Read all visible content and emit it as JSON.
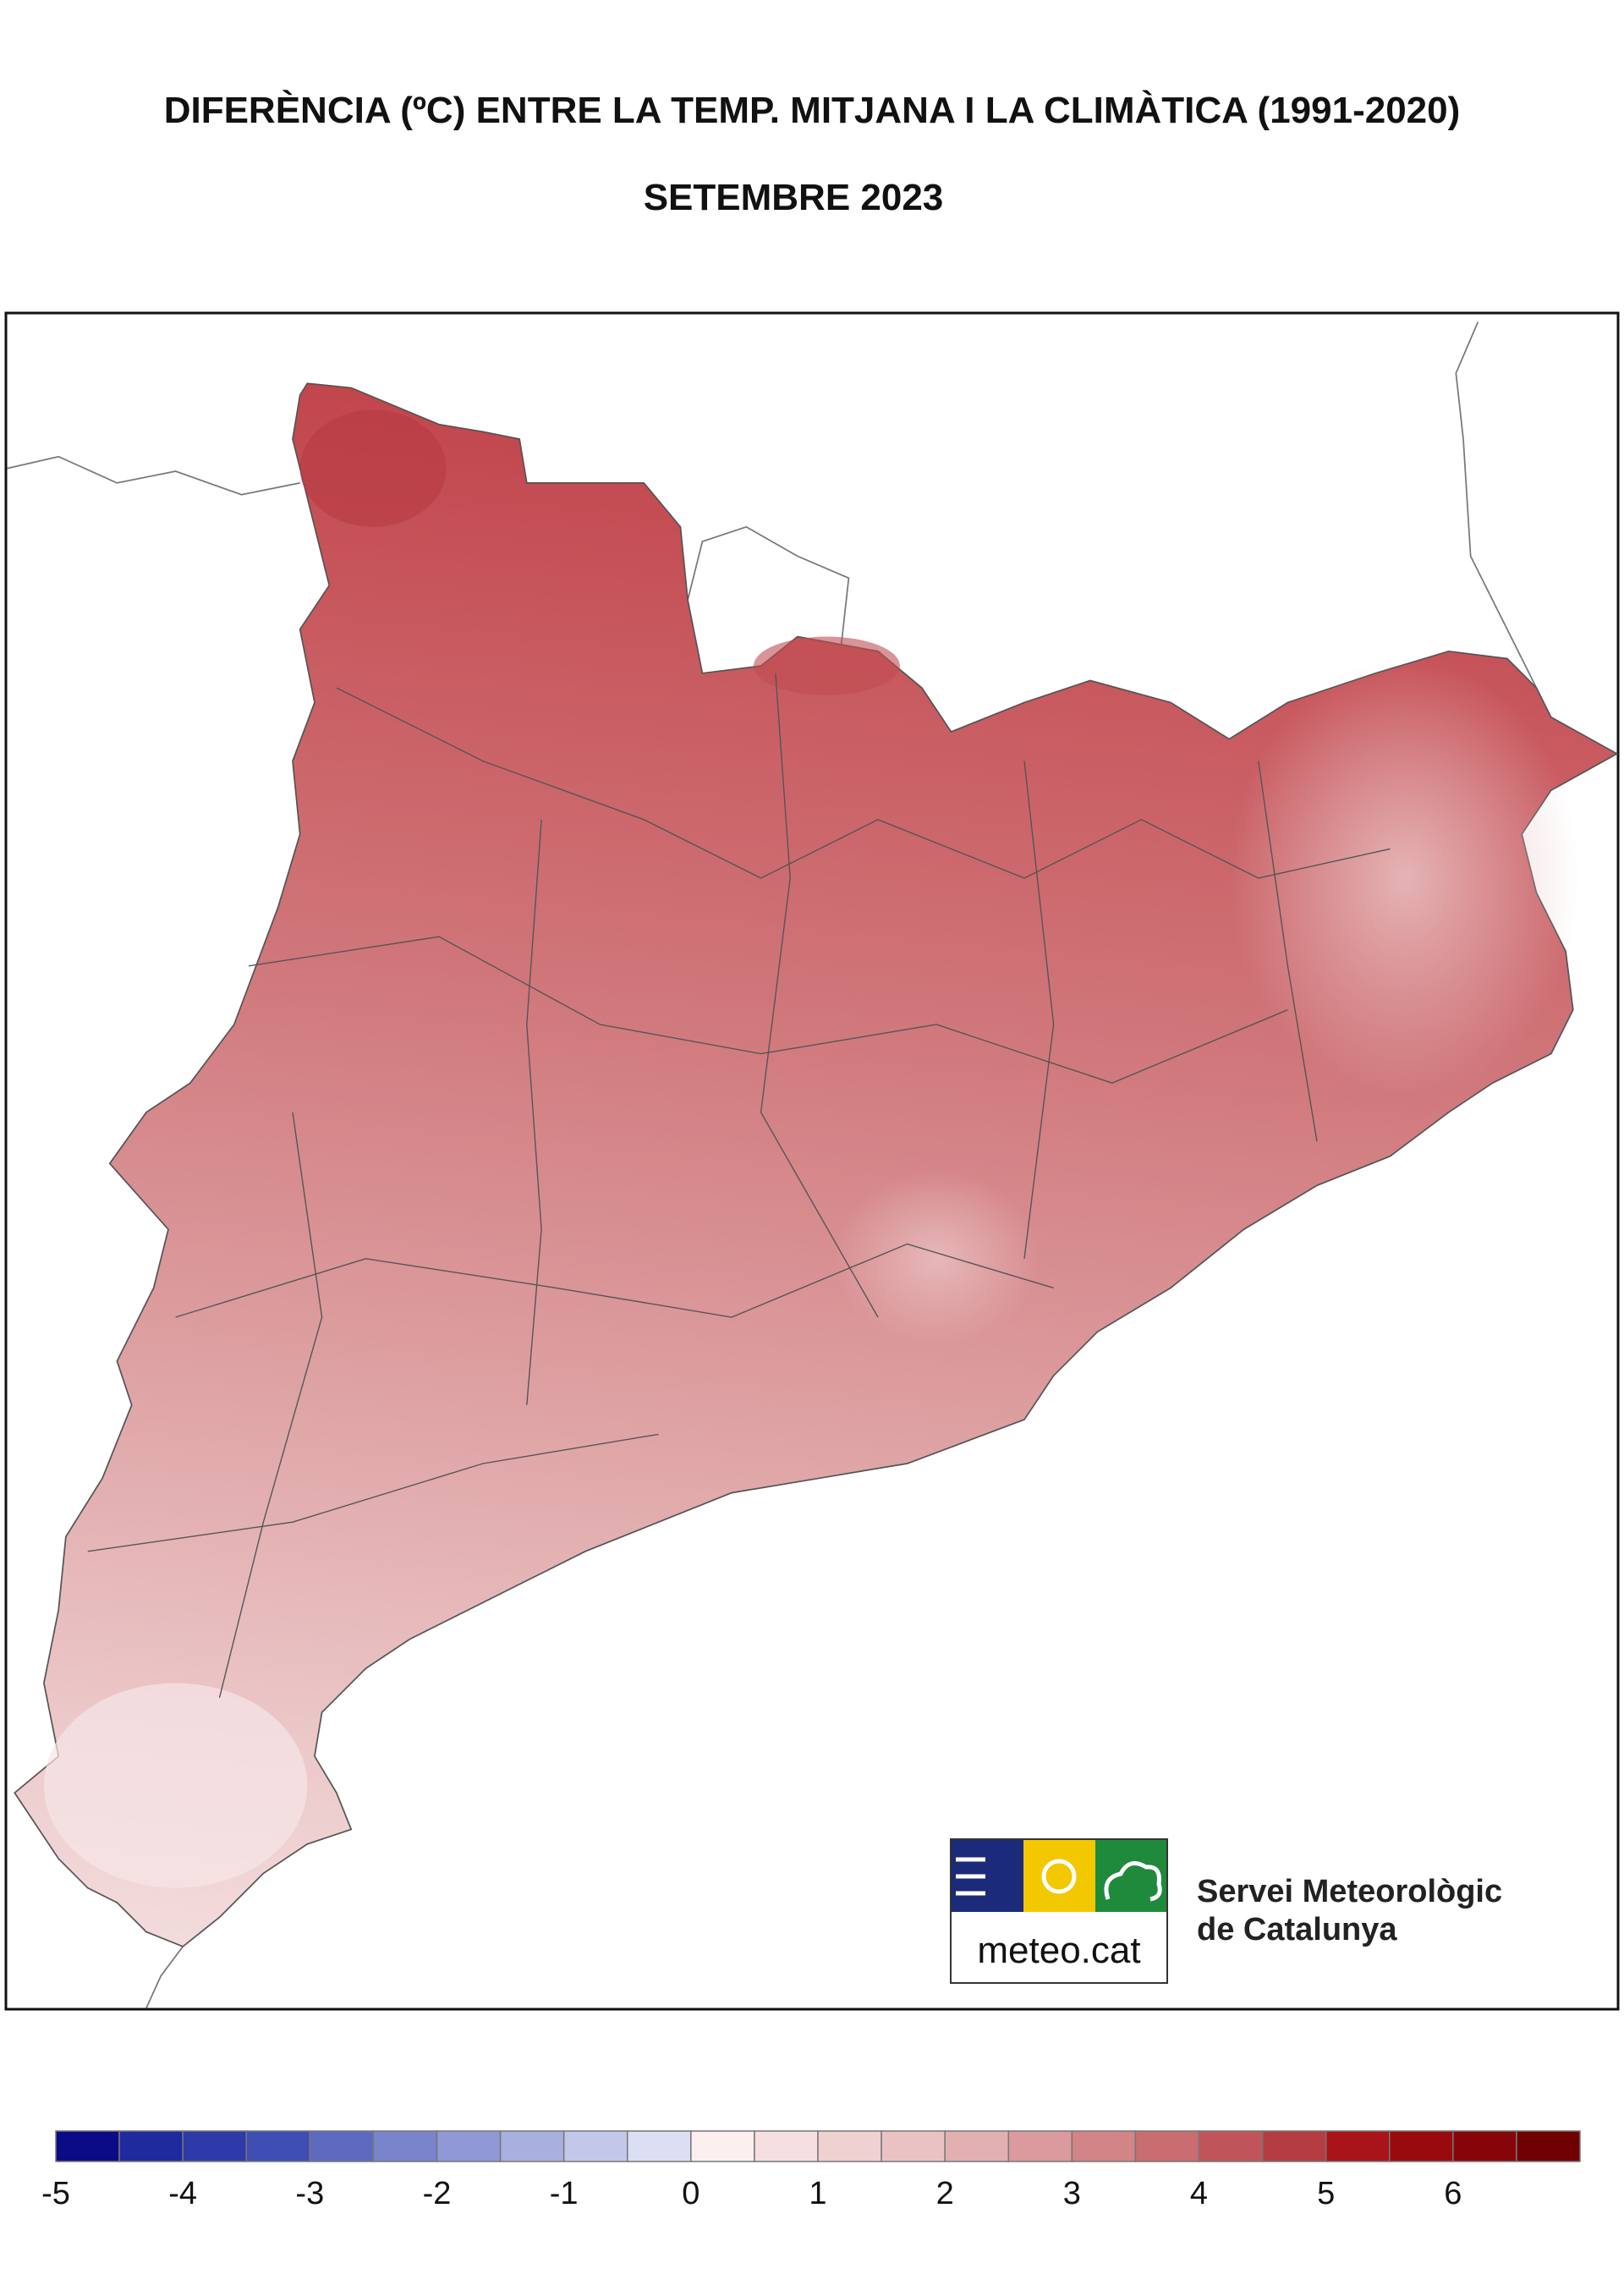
{
  "title": "DIFERÈNCIA (ºC) ENTRE LA TEMP. MITJANA I LA CLIMÀTICA (1991-2020)",
  "subtitle": "SETEMBRE 2023",
  "logo": {
    "site": "meteo.cat",
    "name_line1": "Servei Meteorològic",
    "name_line2": "de Catalunya"
  },
  "legend": {
    "bins": [
      -5,
      -4.5,
      -4,
      -3.5,
      -3,
      -2.5,
      -2,
      -1.5,
      -1,
      -0.5,
      0,
      0.5,
      1,
      1.5,
      2,
      2.5,
      3,
      3.5,
      4,
      4.5,
      5,
      5.5,
      6,
      6.5,
      7
    ],
    "colors": [
      "#0b0b86",
      "#1f2a9e",
      "#2e3aa8",
      "#3f4eb3",
      "#5e6ac0",
      "#7a84cc",
      "#9099d6",
      "#a8b0e0",
      "#c3c8ea",
      "#dcdff4",
      "#fbeff0",
      "#f5dfe0",
      "#efd1d2",
      "#e9c3c4",
      "#e3b0b2",
      "#db9a9d",
      "#d28487",
      "#c96d71",
      "#bf555a",
      "#b43c42",
      "#a8141a",
      "#990a0f",
      "#870508",
      "#700004"
    ],
    "ticks": [
      -5,
      -4,
      -3,
      -2,
      -1,
      0,
      1,
      2,
      3,
      4,
      5,
      6
    ]
  }
}
